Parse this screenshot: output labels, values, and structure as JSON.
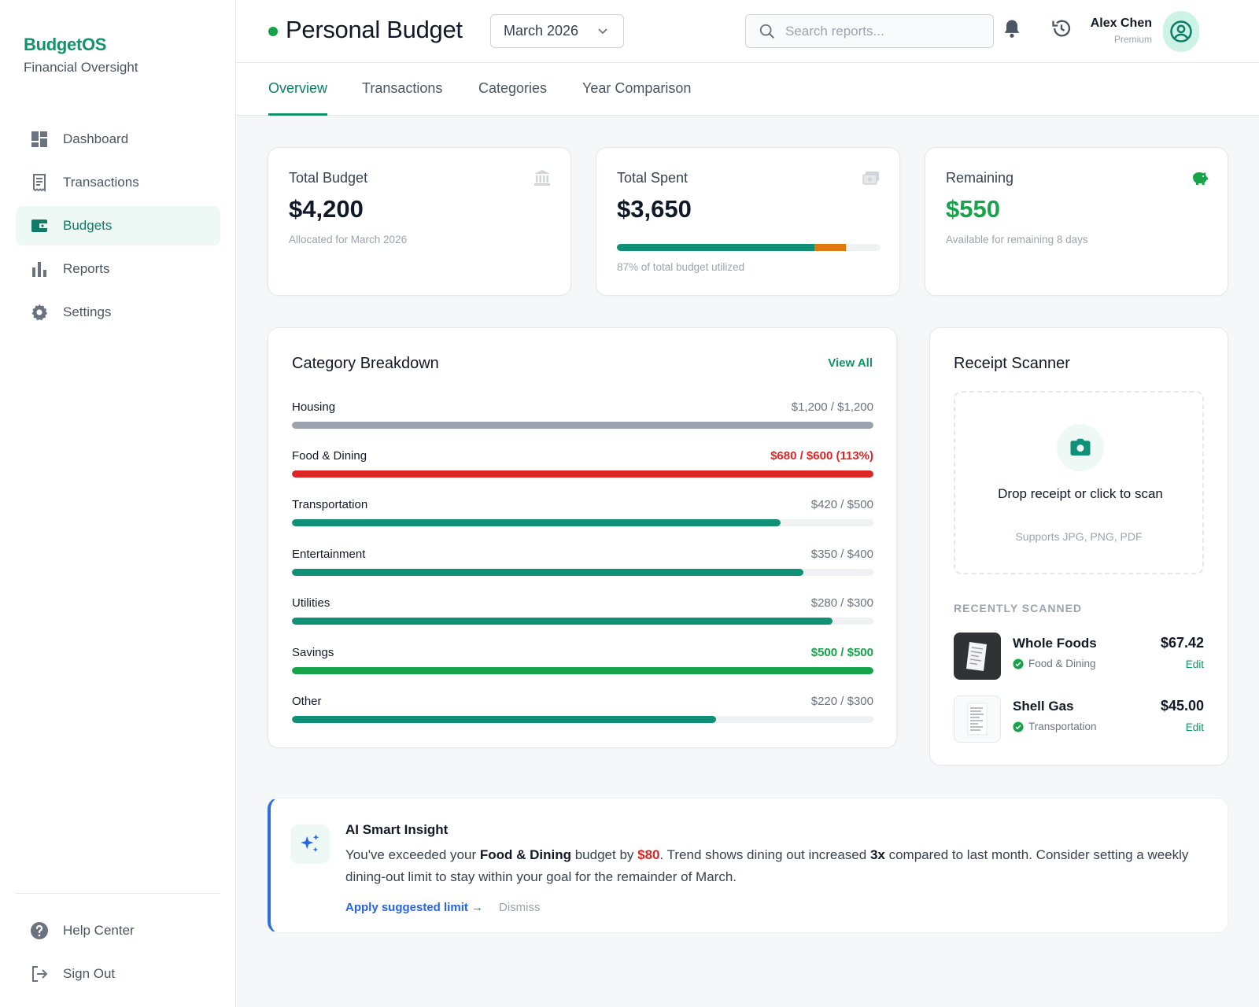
{
  "brand": {
    "name": "BudgetOS",
    "subtitle": "Financial Oversight"
  },
  "sidebar": {
    "items": [
      {
        "label": "Dashboard",
        "icon": "dashboard-icon"
      },
      {
        "label": "Transactions",
        "icon": "receipt-icon"
      },
      {
        "label": "Budgets",
        "icon": "wallet-icon",
        "active": true
      },
      {
        "label": "Reports",
        "icon": "bar-chart-icon"
      },
      {
        "label": "Settings",
        "icon": "gear-icon"
      }
    ],
    "bottom": [
      {
        "label": "Help Center",
        "icon": "help-icon"
      },
      {
        "label": "Sign Out",
        "icon": "sign-out-icon"
      }
    ]
  },
  "header": {
    "title": "Personal Budget",
    "month": "March 2026",
    "search_placeholder": "Search reports...",
    "user_name": "Alex Chen",
    "user_tier": "Premium"
  },
  "tabs": [
    "Overview",
    "Transactions",
    "Categories",
    "Year Comparison"
  ],
  "stats": {
    "budget": {
      "label": "Total Budget",
      "value": "$4,200",
      "sub": "Allocated for March 2026"
    },
    "spent": {
      "label": "Total Spent",
      "value": "$3,650",
      "sub": "87% of total budget utilized",
      "progress": 0.87,
      "segments": [
        0.75,
        0.12
      ]
    },
    "remaining": {
      "label": "Remaining",
      "value": "$550",
      "sub": "Available for remaining 8 days"
    }
  },
  "breakdown": {
    "title": "Category Breakdown",
    "view_all": "View All",
    "categories": [
      {
        "name": "Housing",
        "amount": "$1,200 / $1,200",
        "fraction": 1.0,
        "color": "#9ca3af",
        "status": "normal"
      },
      {
        "name": "Food & Dining",
        "amount": "$680 / $600 (113%)",
        "fraction": 1.0,
        "color": "#dc2626",
        "status": "over"
      },
      {
        "name": "Transportation",
        "amount": "$420 / $500",
        "fraction": 0.84,
        "color": "#119078",
        "status": "normal"
      },
      {
        "name": "Entertainment",
        "amount": "$350 / $400",
        "fraction": 0.88,
        "color": "#119078",
        "status": "normal"
      },
      {
        "name": "Utilities",
        "amount": "$280 / $300",
        "fraction": 0.93,
        "color": "#119078",
        "status": "normal"
      },
      {
        "name": "Savings",
        "amount": "$500 / $500",
        "fraction": 1.0,
        "color": "#16a34a",
        "status": "done"
      },
      {
        "name": "Other",
        "amount": "$220 / $300",
        "fraction": 0.73,
        "color": "#119078",
        "status": "normal"
      }
    ]
  },
  "scanner": {
    "title": "Receipt Scanner",
    "drop_text": "Drop receipt or click to scan",
    "supports": "Supports JPG, PNG, PDF",
    "recent_header": "RECENTLY SCANNED",
    "receipts": [
      {
        "name": "Whole Foods",
        "category": "Food & Dining",
        "amount": "$67.42",
        "edit": "Edit"
      },
      {
        "name": "Shell Gas",
        "category": "Transportation",
        "amount": "$45.00",
        "edit": "Edit"
      }
    ]
  },
  "insight": {
    "title": "AI Smart Insight",
    "text_1": "You've exceeded your ",
    "text_bold_1": "Food & Dining",
    "text_2": " budget by ",
    "text_red": "$80",
    "text_3": ". Trend shows dining out increased ",
    "text_bold_2": "3x",
    "text_4": " compared to last month. Consider setting a weekly dining-out limit to stay within your goal for the remainder of March.",
    "apply": "Apply suggested limit →",
    "dismiss": "Dismiss"
  },
  "colors": {
    "accent": "#10946a",
    "danger": "#dc2626",
    "success": "#16a34a",
    "warning": "#e07a10",
    "link": "#2563eb"
  }
}
